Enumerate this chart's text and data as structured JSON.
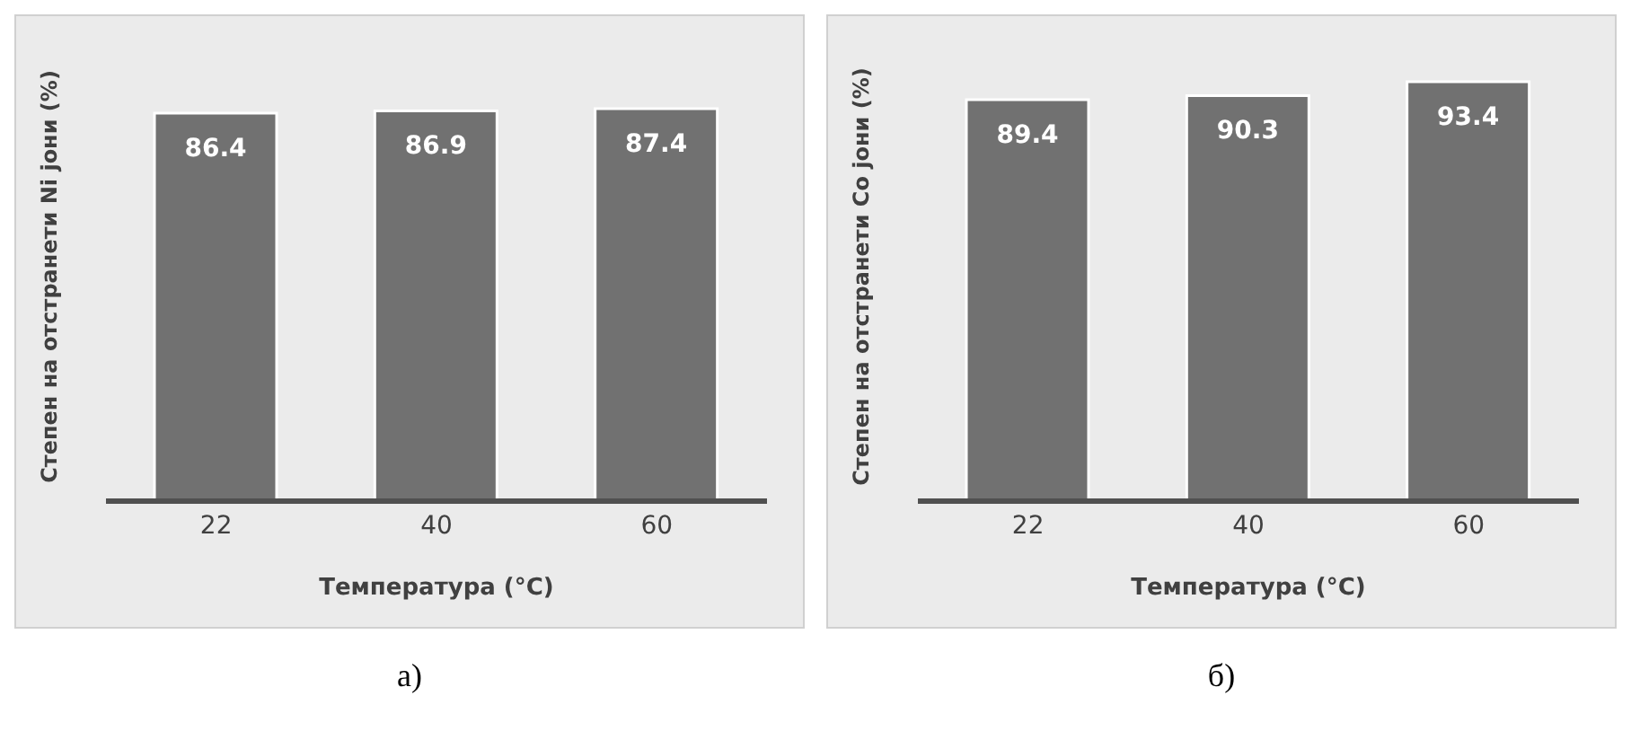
{
  "chart_data": [
    {
      "type": "bar",
      "categories": [
        "22",
        "40",
        "60"
      ],
      "values": [
        86.4,
        86.9,
        87.4
      ],
      "color": "#717171",
      "tick_labels": "x",
      "data_labels": true,
      "xlabel": "Температура (°C)",
      "ylabel": "Степен на отстранети Ni јони (%)",
      "annotations": [
        "а)"
      ]
    },
    {
      "type": "bar",
      "categories": [
        "22",
        "40",
        "60"
      ],
      "values": [
        89.4,
        90.3,
        93.4
      ],
      "color": "#717171",
      "tick_labels": "x",
      "data_labels": true,
      "xlabel": "Температура (°C)",
      "ylabel": "Степен на отстранети Co јони (%)",
      "annotations": [
        "б)"
      ]
    }
  ]
}
